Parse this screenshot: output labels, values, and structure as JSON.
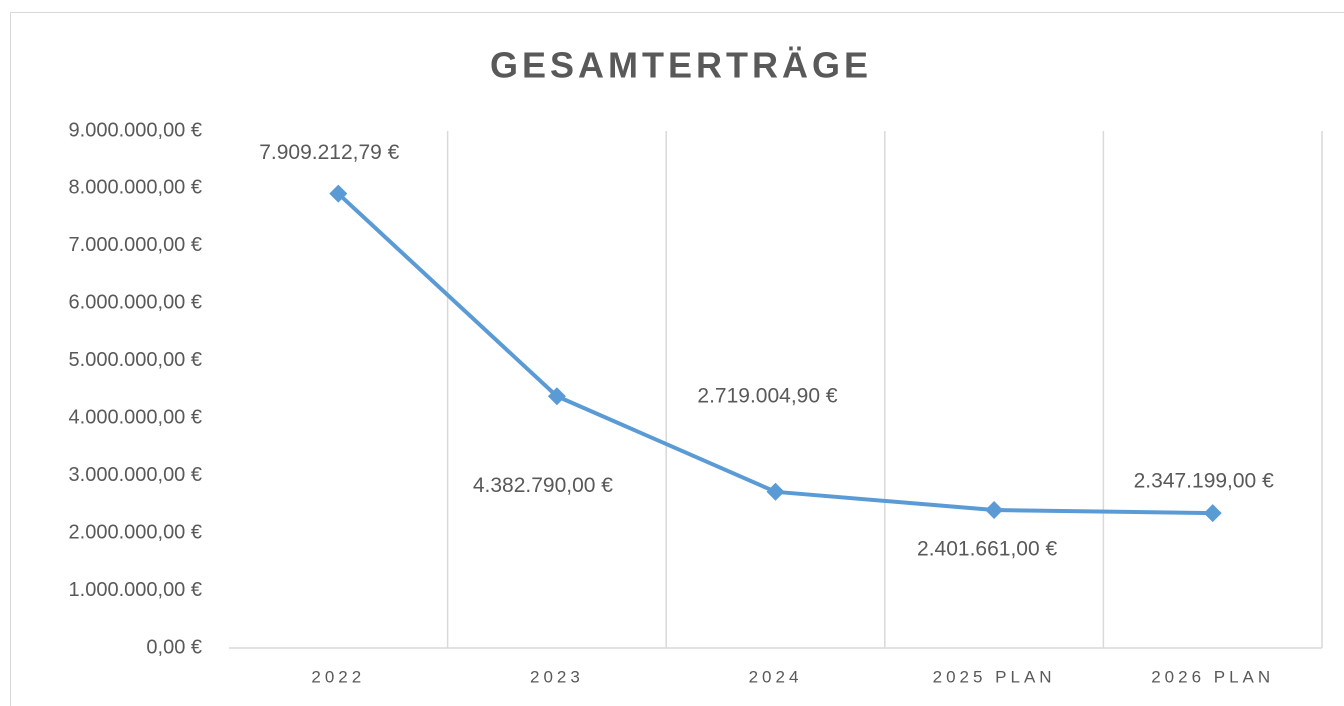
{
  "chart_data": {
    "type": "line",
    "title": "GESAMTERTRÄGE",
    "categories": [
      "2022",
      "2023",
      "2024",
      "2025 PLAN",
      "2026 PLAN"
    ],
    "series": [
      {
        "name": "Gesamterträge",
        "color": "#5b9bd5",
        "values": [
          7909212.79,
          4382790.0,
          2719004.9,
          2401661.0,
          2347199.0
        ],
        "value_labels": [
          "7.909.212,79 €",
          "4.382.790,00 €",
          "2.719.004,90 €",
          "2.401.661,00 €",
          "2.347.199,00 €"
        ]
      }
    ],
    "ylim": [
      0,
      9000000
    ],
    "yticks": [
      {
        "value": 0,
        "label": "0,00 €"
      },
      {
        "value": 1000000,
        "label": "1.000.000,00 €"
      },
      {
        "value": 2000000,
        "label": "2.000.000,00 €"
      },
      {
        "value": 3000000,
        "label": "3.000.000,00 €"
      },
      {
        "value": 4000000,
        "label": "4.000.000,00 €"
      },
      {
        "value": 5000000,
        "label": "5.000.000,00 €"
      },
      {
        "value": 6000000,
        "label": "6.000.000,00 €"
      },
      {
        "value": 7000000,
        "label": "7.000.000,00 €"
      },
      {
        "value": 8000000,
        "label": "8.000.000,00 €"
      },
      {
        "value": 9000000,
        "label": "9.000.000,00 €"
      }
    ],
    "grid": "x"
  }
}
